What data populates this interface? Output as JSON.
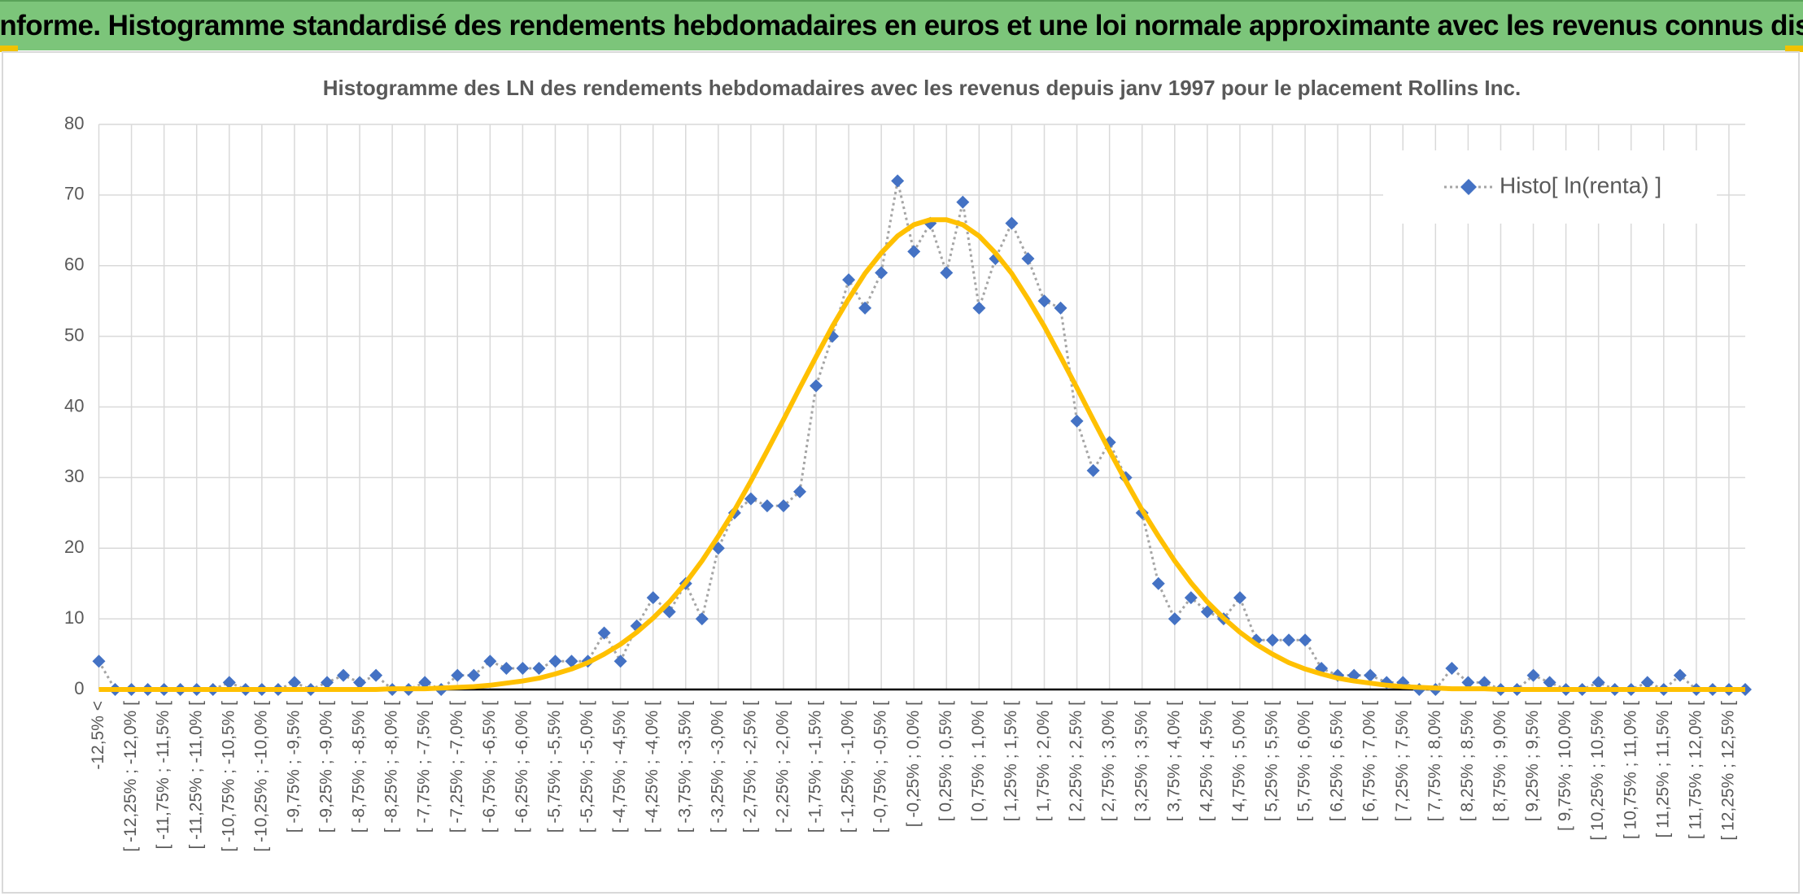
{
  "header": {
    "title": "ADAM Informe. Histogramme standardisé des rendements hebdomadaires en euros et une loi normale approximante avec les revenus connus distribués"
  },
  "chart_data": {
    "type": "line",
    "title": "Histogramme des LN des rendements hebdomadaires avec les revenus depuis janv 1997 pour le placement Rollins Inc.",
    "categories": [
      "-12,5% <",
      null,
      "[ -12,25% ; -12,0% [",
      null,
      "[ -11,75% ; -11,5% [",
      null,
      "[ -11,25% ; -11,0% [",
      null,
      "[ -10,75% ; -10,5% [",
      null,
      "[ -10,25% ; -10,0% [",
      null,
      "[ -9,75% ; -9,5% [",
      null,
      "[ -9,25% ; -9,0% [",
      null,
      "[ -8,75% ; -8,5% [",
      null,
      "[ -8,25% ; -8,0% [",
      null,
      "[ -7,75% ; -7,5% [",
      null,
      "[ -7,25% ; -7,0% [",
      null,
      "[ -6,75% ; -6,5% [",
      null,
      "[ -6,25% ; -6,0% [",
      null,
      "[ -5,75% ; -5,5% [",
      null,
      "[ -5,25% ; -5,0% [",
      null,
      "[ -4,75% ; -4,5% [",
      null,
      "[ -4,25% ; -4,0% [",
      null,
      "[ -3,75% ; -3,5% [",
      null,
      "[ -3,25% ; -3,0% [",
      null,
      "[ -2,75% ; -2,5% [",
      null,
      "[ -2,25% ; -2,0% [",
      null,
      "[ -1,75% ; -1,5% [",
      null,
      "[ -1,25% ; -1,0% [",
      null,
      "[ -0,75% ; -0,5% [",
      null,
      "[ -0,25% ; 0,0% [",
      null,
      "[ 0,25% ; 0,5% [",
      null,
      "[ 0,75% ; 1,0% [",
      null,
      "[ 1,25% ; 1,5% [",
      null,
      "[ 1,75% ; 2,0% [",
      null,
      "[ 2,25% ; 2,5% [",
      null,
      "[ 2,75% ; 3,0% [",
      null,
      "[ 3,25% ; 3,5% [",
      null,
      "[ 3,75% ; 4,0% [",
      null,
      "[ 4,25% ; 4,5% [",
      null,
      "[ 4,75% ; 5,0% [",
      null,
      "[ 5,25% ; 5,5% [",
      null,
      "[ 5,75% ; 6,0% [",
      null,
      "[ 6,25% ; 6,5% [",
      null,
      "[ 6,75% ; 7,0% [",
      null,
      "[ 7,25% ; 7,5% [",
      null,
      "[ 7,75% ; 8,0% [",
      null,
      "[ 8,25% ; 8,5% [",
      null,
      "[ 8,75% ; 9,0% [",
      null,
      "[ 9,25% ; 9,5% [",
      null,
      "[ 9,75% ; 10,0% [",
      null,
      "[ 10,25% ; 10,5% [",
      null,
      "[ 10,75% ; 11,0% [",
      null,
      "[ 11,25% ; 11,5% [",
      null,
      "[ 11,75% ; 12,0% [",
      null,
      "[ 12,25% ; 12,5% [",
      null
    ],
    "series": [
      {
        "name": "Histo[ ln(renta) ]",
        "color": "#4472c4",
        "line_color": "#a5a5a5",
        "line_style": "dotted",
        "marker": "diamond",
        "values": [
          4,
          0,
          0,
          0,
          0,
          0,
          0,
          0,
          1,
          0,
          0,
          0,
          1,
          0,
          1,
          2,
          1,
          2,
          0,
          0,
          1,
          0,
          2,
          2,
          4,
          3,
          3,
          3,
          4,
          4,
          4,
          8,
          4,
          9,
          13,
          11,
          15,
          10,
          20,
          25,
          27,
          26,
          26,
          28,
          43,
          50,
          58,
          54,
          59,
          72,
          62,
          66,
          59,
          69,
          54,
          61,
          66,
          61,
          55,
          54,
          38,
          31,
          35,
          30,
          25,
          15,
          10,
          13,
          11,
          10,
          13,
          7,
          7,
          7,
          7,
          3,
          2,
          2,
          2,
          1,
          1,
          0,
          0,
          3,
          1,
          1,
          0,
          0,
          2,
          1,
          0,
          0,
          1,
          0,
          0,
          1,
          0,
          2,
          0,
          0,
          0,
          0
        ]
      },
      {
        "color": "#ffc000",
        "line_color": "#ffc000",
        "line_style": "solid",
        "marker": "none",
        "values": [
          0,
          0,
          0,
          0,
          0,
          0,
          0,
          0,
          0,
          0,
          0,
          0,
          0,
          0,
          0,
          0,
          0,
          0,
          0.1,
          0.1,
          0.1,
          0.2,
          0.3,
          0.4,
          0.6,
          0.9,
          1.2,
          1.6,
          2.2,
          2.9,
          3.8,
          5.0,
          6.4,
          8.1,
          10.1,
          12.4,
          15.1,
          18.2,
          21.7,
          25.4,
          29.5,
          33.8,
          38.2,
          42.7,
          47.1,
          51.4,
          55.3,
          58.9,
          61.8,
          64.2,
          65.8,
          66.5,
          66.5,
          65.8,
          64.2,
          61.8,
          58.9,
          55.3,
          51.4,
          47.1,
          42.7,
          38.2,
          33.8,
          29.5,
          25.4,
          21.7,
          18.2,
          15.1,
          12.4,
          10.1,
          8.1,
          6.4,
          5.0,
          3.8,
          2.9,
          2.2,
          1.6,
          1.2,
          0.9,
          0.6,
          0.4,
          0.3,
          0.2,
          0.1,
          0.1,
          0.1,
          0,
          0,
          0,
          0,
          0,
          0,
          0,
          0,
          0,
          0,
          0,
          0,
          0,
          0,
          0,
          0
        ]
      }
    ],
    "ylim": [
      0,
      80
    ],
    "yticks": [
      0,
      10,
      20,
      30,
      40,
      50,
      60,
      70,
      80
    ],
    "grid": true,
    "legend": "top-right"
  }
}
